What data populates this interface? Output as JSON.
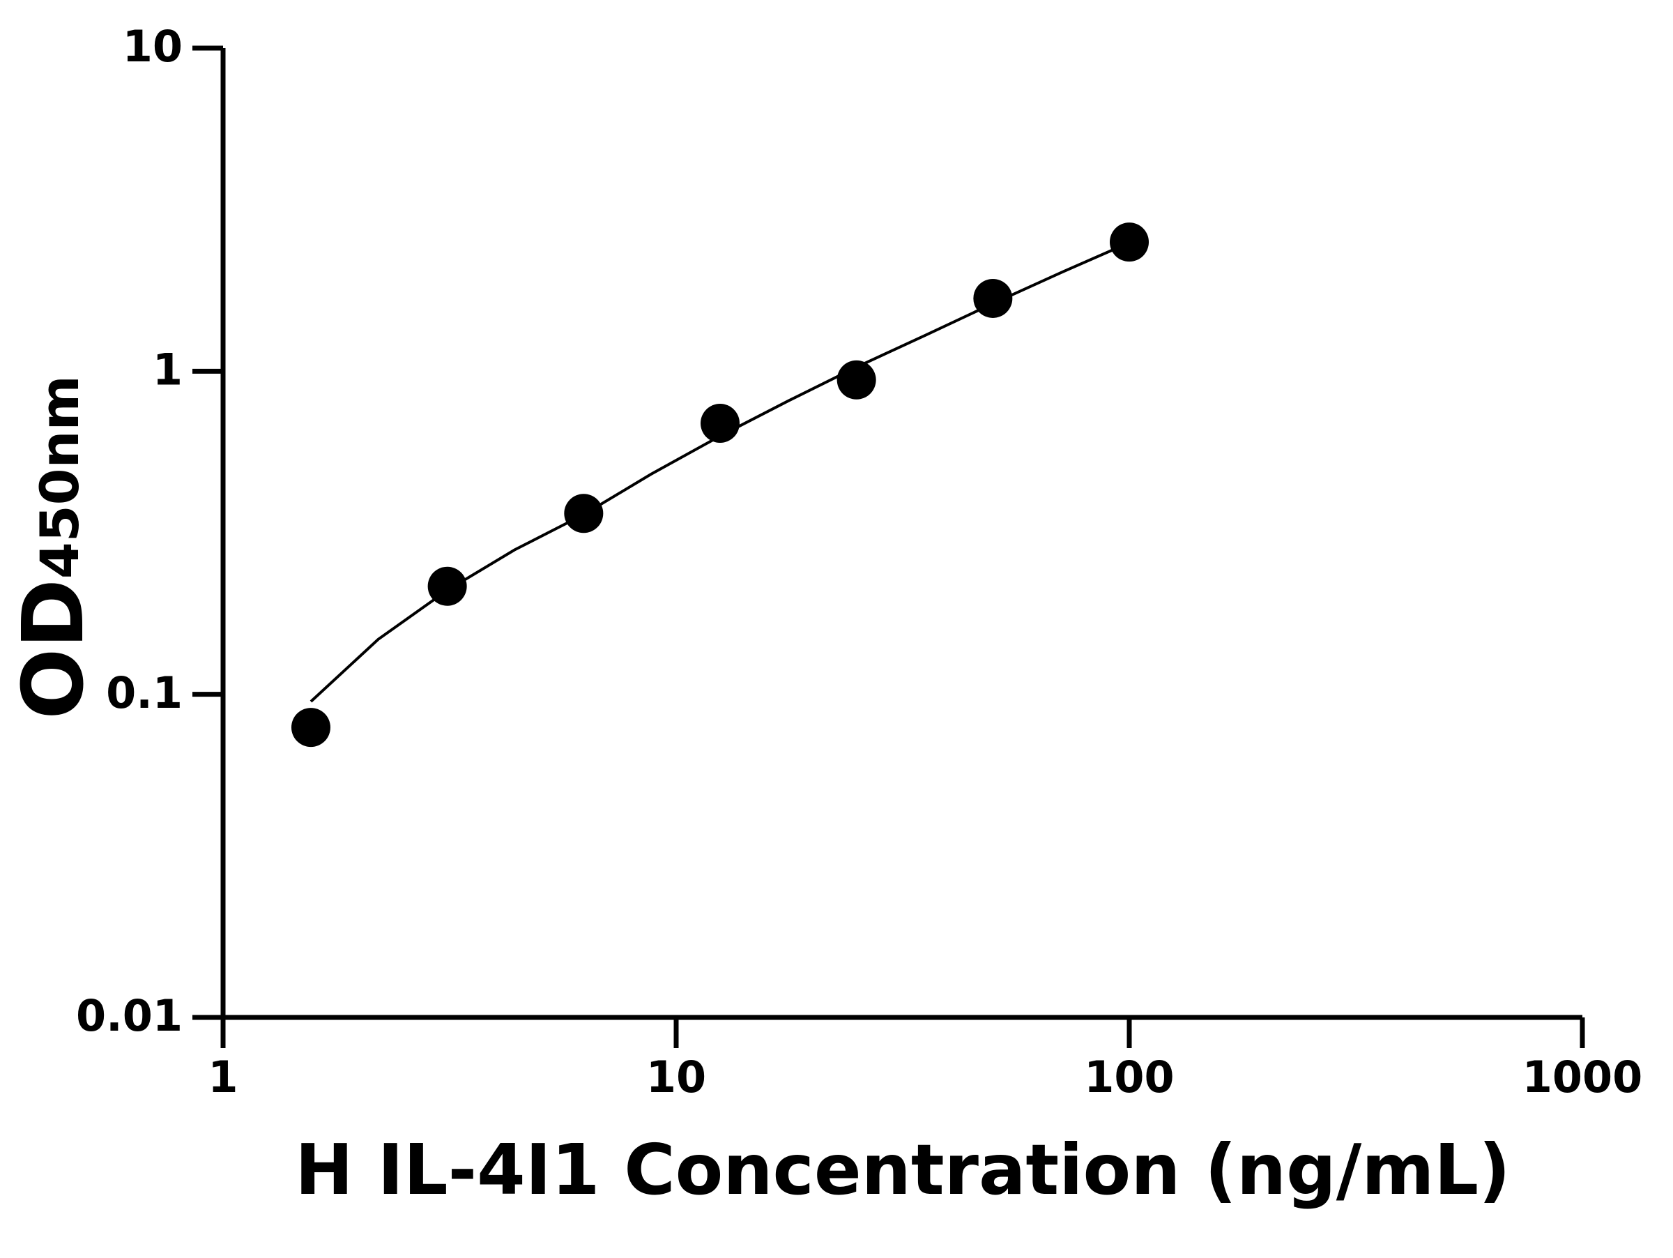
{
  "chart_data": {
    "type": "scatter",
    "x_label": "H IL-4I1 Concentration (ng/mL)",
    "y_label": "OD",
    "y_label_subscript": "450nm",
    "x": [
      1.5625,
      3.125,
      6.25,
      12.5,
      25,
      50,
      100
    ],
    "values": [
      0.079,
      0.216,
      0.363,
      0.69,
      0.94,
      1.68,
      2.51
    ],
    "color": "#000000",
    "fit": {
      "x": [
        1.5625,
        2.2,
        3.125,
        4.4,
        6.25,
        8.8,
        12.5,
        17.7,
        25,
        35.4,
        50,
        70.7,
        100
      ],
      "values": [
        0.095,
        0.148,
        0.21,
        0.28,
        0.36,
        0.48,
        0.63,
        0.81,
        1.03,
        1.29,
        1.62,
        2.02,
        2.5
      ]
    },
    "xlim": [
      1,
      1000
    ],
    "ylim": [
      0.01,
      10
    ],
    "xticks": [
      1,
      10,
      100,
      1000
    ],
    "yticks": [
      0.01,
      0.1,
      1,
      10
    ],
    "log_x": true,
    "log_y": true
  }
}
